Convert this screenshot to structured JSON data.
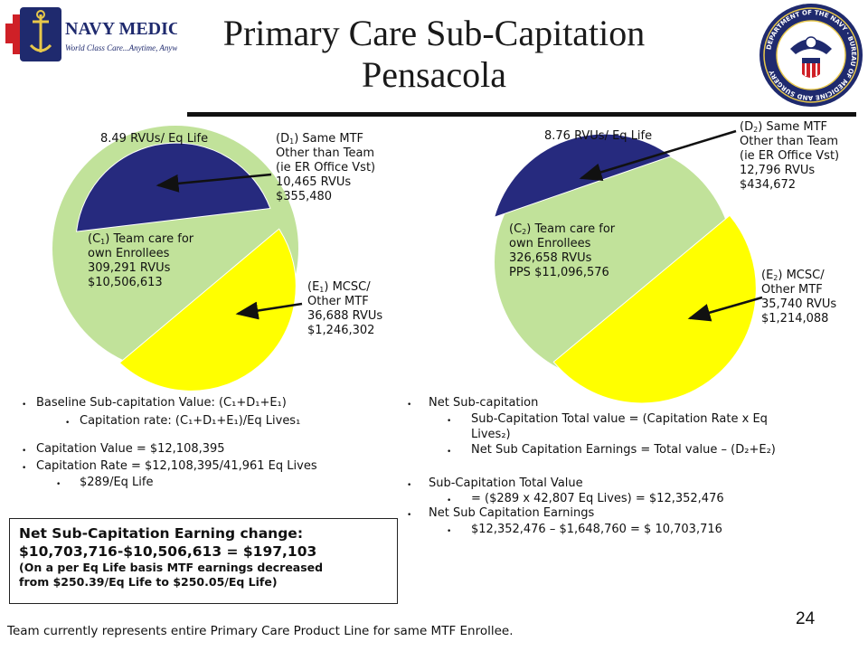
{
  "header": {
    "logo_left_text": "NAVY MEDICINE",
    "logo_left_tagline": "World Class Care...Anytime, Anywhere",
    "logo_right_text": "DEPARTMENT OF THE NAVY · BUREAU OF MEDICINE AND SURGERY",
    "title_line1": "Primary Care Sub-Capitation",
    "title_line2": "Pensacola"
  },
  "colors": {
    "team_care": "#c1e29a",
    "mcsc": "#ffff00",
    "same_mtf": "#262a7e",
    "brand_navy": "#1f2a6e",
    "brand_red": "#cf2027"
  },
  "pie1": {
    "header": "8.49 RVUs/ Eq Life",
    "d_label": [
      "(D",
      "1",
      ") Same MTF"
    ],
    "d_lines": [
      "Other than Team",
      "(ie ER Office Vst)",
      "10,465 RVUs",
      "$355,480"
    ],
    "c_label": [
      "(C",
      "1",
      ") Team care for"
    ],
    "c_lines": [
      "own Enrollees",
      "309,291 RVUs",
      "$10,506,613"
    ],
    "e_label": [
      "(E",
      "1",
      ") MCSC/"
    ],
    "e_lines": [
      "Other MTF",
      "36,688  RVUs",
      "$1,246,302"
    ]
  },
  "pie2": {
    "header": "8.76 RVUs/ Eq Life",
    "d_label": [
      "(D",
      "2",
      ") Same MTF"
    ],
    "d_lines": [
      "Other than Team",
      "(ie ER Office Vst)",
      " 12,796 RVUs",
      "$434,672"
    ],
    "c_label": [
      "(C",
      "2",
      ") Team care for"
    ],
    "c_lines": [
      "own Enrollees",
      "326,658 RVUs",
      "PPS $11,096,576"
    ],
    "e_label": [
      "(E",
      "2",
      ") MCSC/"
    ],
    "e_lines": [
      "Other MTF",
      " 35,740 RVUs",
      "$1,214,088"
    ]
  },
  "left_bullets": {
    "b1": "Baseline Sub-capitation Value: (C₁+D₁+E₁)",
    "b1a": "Capitation rate: (C₁+D₁+E₁)/Eq Lives₁",
    "b2": "Capitation Value =  $12,108,395",
    "b3": "Capitation Rate =  $12,108,395/41,961 Eq Lives",
    "b3a": "$289/Eq Life"
  },
  "right_bullets": {
    "b1": "Net Sub-capitation",
    "b1a": "Sub-Capitation Total value = (Capitation Rate x Eq",
    "b1a2": "Lives₂)",
    "b1b": "Net Sub Capitation Earnings = Total value – (D₂+E₂)",
    "b2": "Sub-Capitation Total Value",
    "b2a": "= ($289 x 42,807 Eq Lives) =  $12,352,476",
    "b3": "Net Sub Capitation Earnings",
    "b3a": "$12,352,476 – $1,648,760 = $ 10,703,716"
  },
  "summary_box": {
    "line1": "Net Sub-Capitation Earning  change:",
    "line2": "$10,703,716-$10,506,613 = $197,103",
    "line3": "(On a per Eq Life basis MTF earnings decreased",
    "line4": "from $250.39/Eq Life to $250.05/Eq Life)"
  },
  "footnote": "Team currently represents entire Primary Care Product Line for same MTF Enrollee.",
  "page_number": "24"
}
